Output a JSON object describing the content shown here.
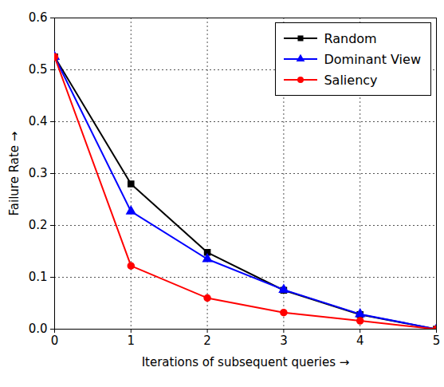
{
  "chart_data": {
    "type": "line",
    "x_label": "Iterations of subsequent queries",
    "y_label": "Failure Rate",
    "x": [
      0,
      1,
      2,
      3,
      4,
      5
    ],
    "series": [
      {
        "name": "Random",
        "color": "#000000",
        "marker": "square",
        "values": [
          0.525,
          0.28,
          0.148,
          0.075,
          0.028,
          0.0
        ]
      },
      {
        "name": "Dominant View",
        "color": "#0000ff",
        "marker": "triangle",
        "values": [
          0.525,
          0.227,
          0.135,
          0.076,
          0.029,
          0.0
        ]
      },
      {
        "name": "Saliency",
        "color": "#ff0000",
        "marker": "circle",
        "values": [
          0.525,
          0.122,
          0.06,
          0.032,
          0.016,
          0.0
        ]
      }
    ],
    "xlim": [
      0,
      5
    ],
    "xticks": [
      0,
      1,
      2,
      3,
      4,
      5
    ],
    "ylim": [
      0,
      0.6
    ],
    "yticks": [
      {
        "value": 0,
        "label": "0.0"
      },
      0.1,
      0.2,
      0.3,
      0.4,
      0.5,
      0.6
    ],
    "grid": true,
    "legend": "upper right"
  }
}
